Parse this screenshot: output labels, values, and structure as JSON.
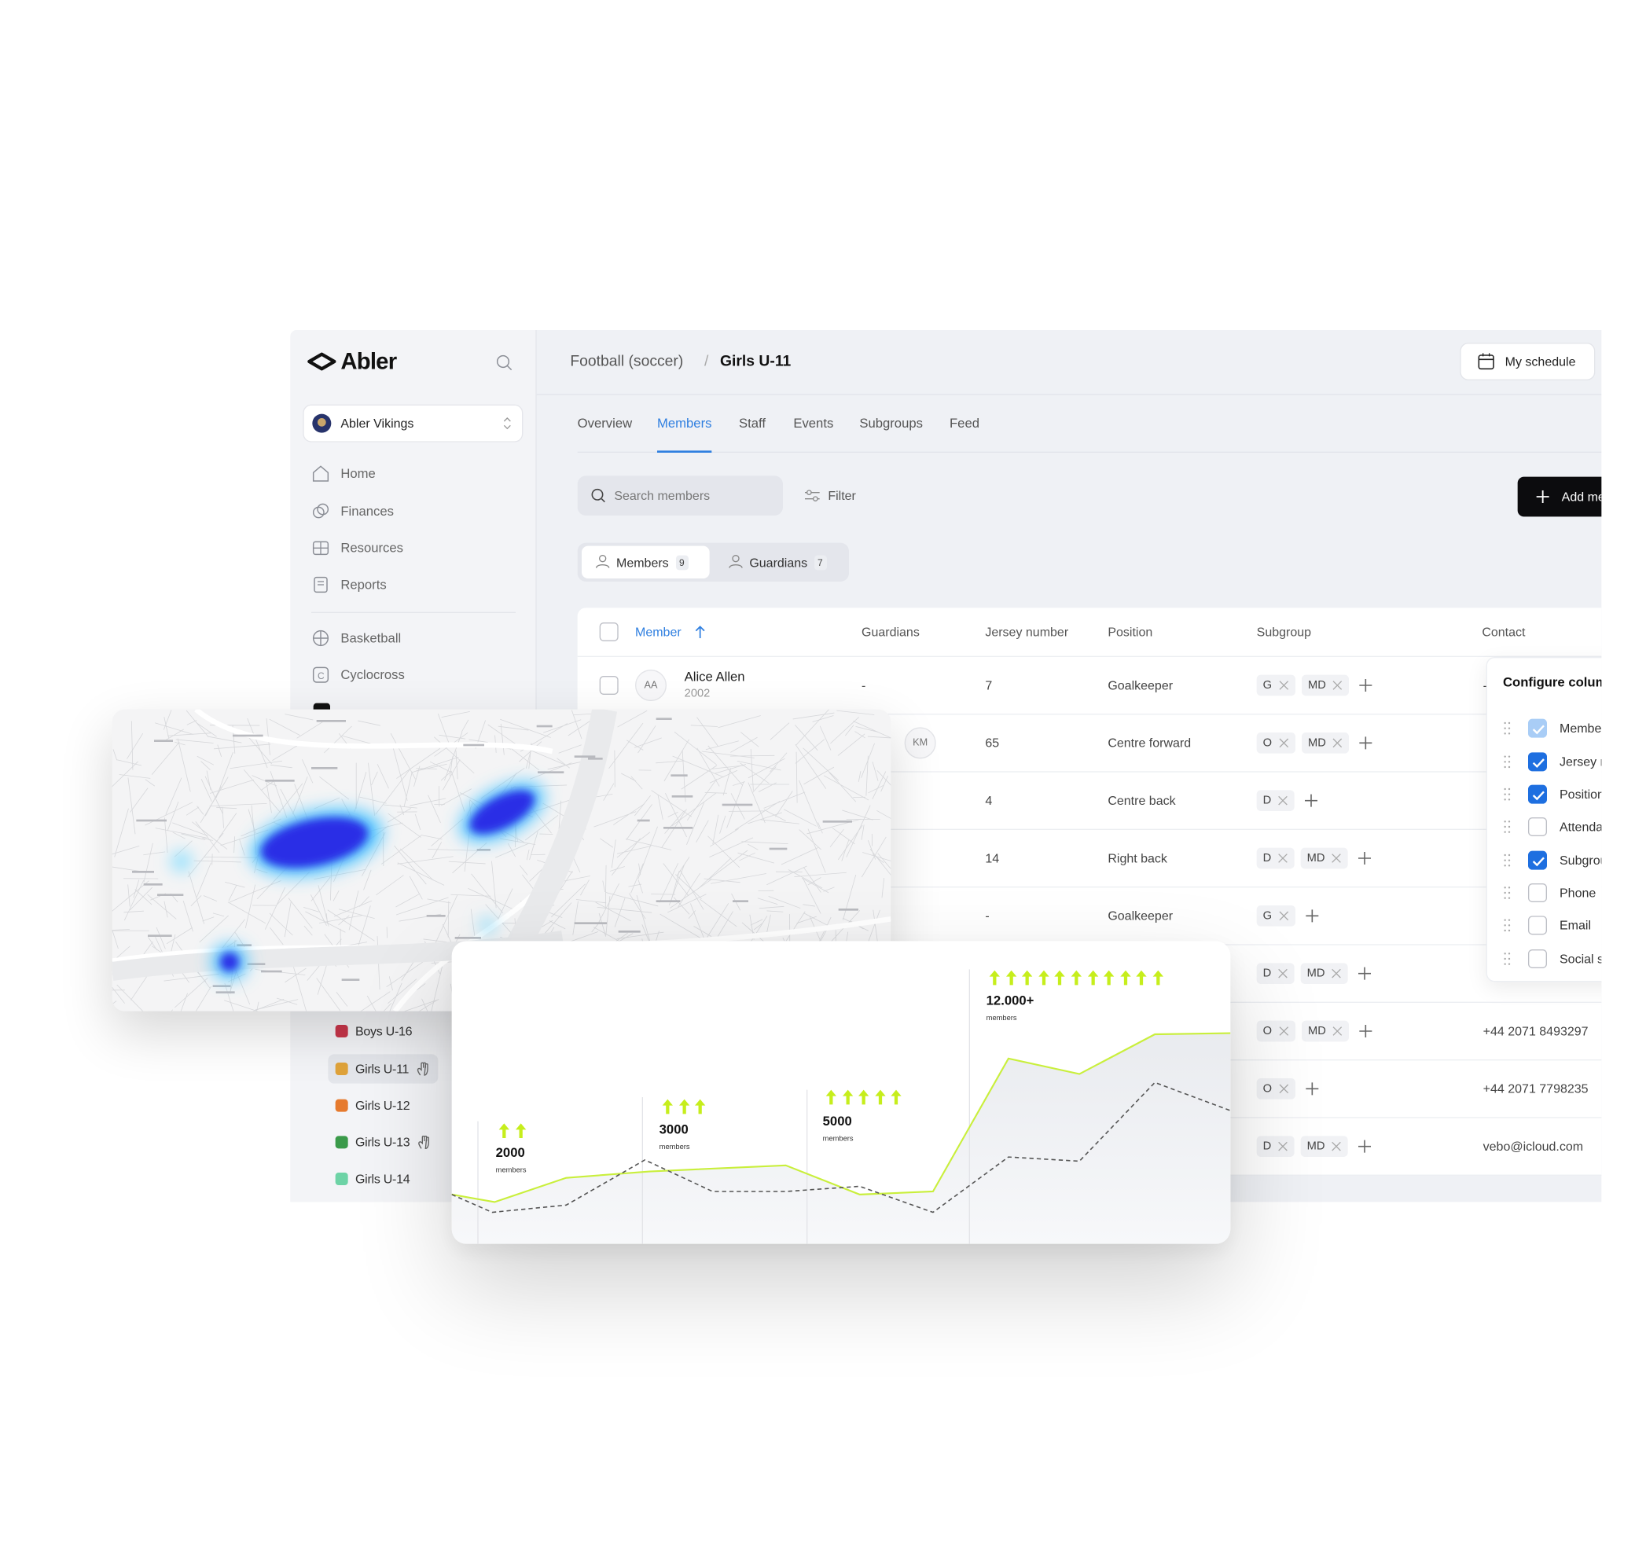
{
  "sidebar": {
    "brand": "Abler",
    "organization": "Abler Vikings",
    "nav": [
      "Home",
      "Finances",
      "Resources",
      "Reports"
    ],
    "sports": [
      "Basketball",
      "Cyclocross"
    ],
    "teams": [
      {
        "name": "Boys U-16",
        "color": "#c8364a"
      },
      {
        "name": "Girls U-11",
        "color": "#e0a33a",
        "active": true,
        "hand_icon": true
      },
      {
        "name": "Girls U-12",
        "color": "#e67a2e"
      },
      {
        "name": "Girls U-13",
        "color": "#3a9a4a",
        "hand_icon": true
      },
      {
        "name": "Girls U-14",
        "color": "#6dd3a6"
      }
    ]
  },
  "header": {
    "breadcrumb": [
      "Football (soccer)",
      "/",
      "Girls U-11"
    ],
    "schedule_button": "My schedule"
  },
  "tabs": {
    "items": [
      "Overview",
      "Members",
      "Staff",
      "Events",
      "Subgroups",
      "Feed"
    ],
    "active": 1
  },
  "toolbar": {
    "search_placeholder": "Search members",
    "filter": "Filter",
    "add_button": "Add member"
  },
  "segments": {
    "items": [
      {
        "label": "Members",
        "count": 9
      },
      {
        "label": "Guardians",
        "count": 7
      }
    ],
    "active": 0
  },
  "table": {
    "columns": [
      "Member",
      "Guardians",
      "Jersey number",
      "Position",
      "Subgroup",
      "Contact"
    ],
    "rows": [
      {
        "avatar": "AA",
        "name": "Alice Allen",
        "year": "2002",
        "guardians": "-",
        "jersey": 7,
        "position": "Goalkeeper",
        "subgroups": [
          "G",
          "MD"
        ],
        "contact": "-"
      },
      {
        "avatar": "KM",
        "jersey": 65,
        "position": "Centre forward",
        "subgroups": [
          "O",
          "MD"
        ]
      },
      {
        "jersey": 4,
        "position": "Centre back",
        "subgroups": [
          "D"
        ]
      },
      {
        "jersey": 14,
        "position": "Right back",
        "subgroups": [
          "D",
          "MD"
        ]
      },
      {
        "jersey": "-",
        "position": "Goalkeeper",
        "subgroups": [
          "G"
        ]
      },
      {
        "subgroups": [
          "D",
          "MD"
        ]
      },
      {
        "subgroups": [
          "O",
          "MD"
        ],
        "contact": "+44 2071 8493297"
      },
      {
        "subgroups": [
          "O"
        ],
        "contact": "+44 2071 7798235"
      },
      {
        "subgroups": [
          "D",
          "MD"
        ],
        "contact": "vebo@icloud.com"
      }
    ]
  },
  "column_menu": {
    "title": "Configure columns",
    "items": [
      {
        "label": "Member",
        "checked": true,
        "disabled": true
      },
      {
        "label": "Jersey number",
        "checked": true
      },
      {
        "label": "Position",
        "checked": true
      },
      {
        "label": "Attendance",
        "checked": false
      },
      {
        "label": "Subgroup",
        "checked": true
      },
      {
        "label": "Phone",
        "checked": false
      },
      {
        "label": "Email",
        "checked": false
      },
      {
        "label": "Social security number",
        "checked": false
      }
    ]
  },
  "chart_data": {
    "type": "line",
    "xlim": [
      0,
      100
    ],
    "ylim": [
      0,
      100
    ],
    "series": [
      {
        "color": "#c9ef3c",
        "fill": true,
        "x": [
          0,
          5.5,
          14.7,
          25.4,
          42.9,
          52.4,
          61.8,
          71.5,
          80.6,
          90.3,
          100
        ],
        "values": [
          16.3,
          13.8,
          21.8,
          23.9,
          25.9,
          16.3,
          17.3,
          61.2,
          56.1,
          69.2,
          69.6
        ]
      },
      {
        "color": "#555555",
        "dashed": true,
        "x": [
          0,
          5.2,
          14.7,
          24.8,
          33.5,
          42.9,
          52.4,
          61.8,
          71.5,
          80.6,
          90.3,
          100
        ],
        "values": [
          16.3,
          10.4,
          12.8,
          27.7,
          17.3,
          17.3,
          19.0,
          10.4,
          28.7,
          27.3,
          53.3,
          44.0
        ]
      }
    ],
    "annotations": [
      {
        "text": "2000",
        "subtext": "members",
        "icons": 2
      },
      {
        "text": "3000",
        "subtext": "members",
        "icons": 3
      },
      {
        "text": "5000",
        "subtext": "members",
        "icons": 5
      },
      {
        "text": "12.000+",
        "subtext": "members",
        "icons": 11
      }
    ]
  }
}
